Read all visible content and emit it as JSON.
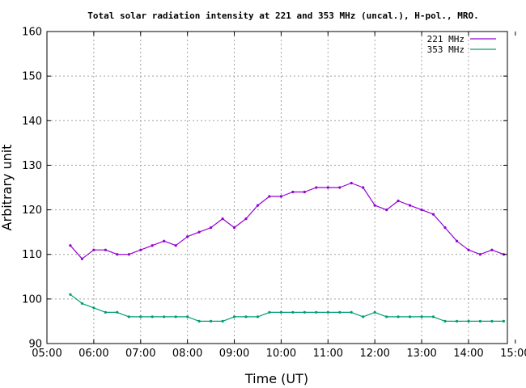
{
  "chart_data": {
    "type": "line",
    "title": "Total solar radiation intensity at 221 and 353 MHz (uncal.), H-pol., MRO.",
    "xlabel": "Time (UT)",
    "ylabel": "Arbitrary unit",
    "xlim": [
      5.0,
      14.83
    ],
    "ylim": [
      90,
      160
    ],
    "x_ticks": [
      "05:00",
      "06:00",
      "07:00",
      "08:00",
      "09:00",
      "10:00",
      "11:00",
      "12:00",
      "13:00",
      "14:00",
      "15:00"
    ],
    "y_ticks": [
      90,
      100,
      110,
      120,
      130,
      140,
      150,
      160
    ],
    "grid": true,
    "legend_position": "top-right",
    "series": [
      {
        "name": "221 MHz",
        "color": "#9400d3",
        "x": [
          "05:30",
          "05:45",
          "06:00",
          "06:15",
          "06:30",
          "06:45",
          "07:00",
          "07:15",
          "07:30",
          "07:45",
          "08:00",
          "08:15",
          "08:30",
          "08:45",
          "09:00",
          "09:15",
          "09:30",
          "09:45",
          "10:00",
          "10:15",
          "10:30",
          "10:45",
          "11:00",
          "11:15",
          "11:30",
          "11:45",
          "12:00",
          "12:15",
          "12:30",
          "12:45",
          "13:00",
          "13:15",
          "13:30",
          "13:45",
          "14:00",
          "14:15",
          "14:30",
          "14:45"
        ],
        "values": [
          112,
          109,
          111,
          111,
          110,
          110,
          111,
          112,
          113,
          112,
          114,
          115,
          116,
          118,
          116,
          118,
          121,
          123,
          123,
          124,
          124,
          125,
          125,
          125,
          126,
          125,
          121,
          120,
          122,
          121,
          120,
          119,
          116,
          113,
          111,
          110,
          111,
          110
        ]
      },
      {
        "name": "353 MHz",
        "color": "#009e73",
        "x": [
          "05:30",
          "05:45",
          "06:00",
          "06:15",
          "06:30",
          "06:45",
          "07:00",
          "07:15",
          "07:30",
          "07:45",
          "08:00",
          "08:15",
          "08:30",
          "08:45",
          "09:00",
          "09:15",
          "09:30",
          "09:45",
          "10:00",
          "10:15",
          "10:30",
          "10:45",
          "11:00",
          "11:15",
          "11:30",
          "11:45",
          "12:00",
          "12:15",
          "12:30",
          "12:45",
          "13:00",
          "13:15",
          "13:30",
          "13:45",
          "14:00",
          "14:15",
          "14:30",
          "14:45"
        ],
        "values": [
          101,
          99,
          98,
          97,
          97,
          96,
          96,
          96,
          96,
          96,
          96,
          95,
          95,
          95,
          96,
          96,
          96,
          97,
          97,
          97,
          97,
          97,
          97,
          97,
          97,
          96,
          97,
          96,
          96,
          96,
          96,
          96,
          95,
          95,
          95,
          95,
          95,
          95
        ]
      }
    ]
  }
}
